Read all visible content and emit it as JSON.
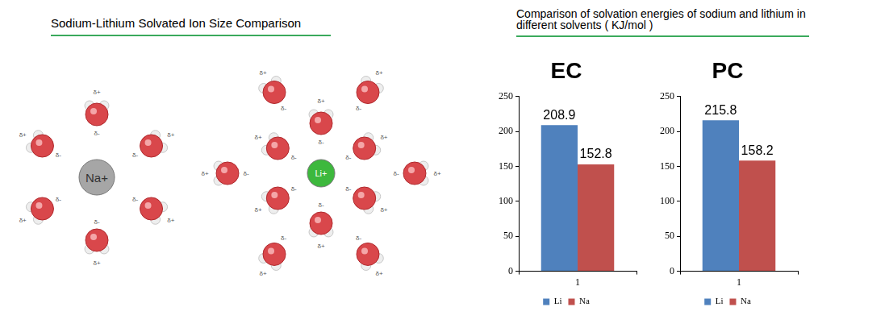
{
  "diagram": {
    "title": "Sodium-Lithium Solvated Ion Size Comparison",
    "ions": [
      {
        "label": "Na+",
        "color": "#a6a6a6",
        "solvent_molecules": 6
      },
      {
        "label": "Li+",
        "color": "#3db83d",
        "solvent_molecules": 12
      }
    ],
    "charge_labels": [
      "δ+",
      "δ-"
    ]
  },
  "charts_title": "Comparison of solvation energies of sodium and lithium in different solvents ( KJ/mol )",
  "chart_data": [
    {
      "type": "bar",
      "title": "EC",
      "categories": [
        "1"
      ],
      "series": [
        {
          "name": "Li",
          "color": "#4f81bd",
          "values": [
            208.9
          ]
        },
        {
          "name": "Na",
          "color": "#c0504d",
          "values": [
            152.8
          ]
        }
      ],
      "ylim": [
        0,
        250
      ],
      "yticks": [
        0,
        50,
        100,
        150,
        200,
        250
      ],
      "grid": false,
      "legend": "bottom",
      "data_labels": true
    },
    {
      "type": "bar",
      "title": "PC",
      "categories": [
        "1"
      ],
      "series": [
        {
          "name": "Li",
          "color": "#4f81bd",
          "values": [
            215.8
          ]
        },
        {
          "name": "Na",
          "color": "#c0504d",
          "values": [
            158.2
          ]
        }
      ],
      "ylim": [
        0,
        250
      ],
      "yticks": [
        0,
        50,
        100,
        150,
        200,
        250
      ],
      "grid": false,
      "legend": "bottom",
      "data_labels": true
    }
  ]
}
